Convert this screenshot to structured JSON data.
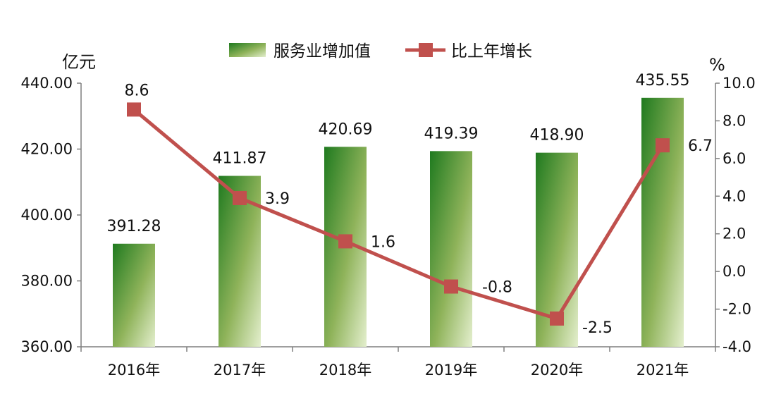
{
  "chart_data": {
    "type": "bar+line",
    "categories": [
      "2016年",
      "2017年",
      "2018年",
      "2019年",
      "2020年",
      "2021年"
    ],
    "series": [
      {
        "name": "服务业增加值",
        "type": "bar",
        "axis": "left",
        "values": [
          391.28,
          411.87,
          420.69,
          419.39,
          418.9,
          435.55
        ],
        "labels": [
          "391.28",
          "411.87",
          "420.69",
          "419.39",
          "418.90",
          "435.55"
        ]
      },
      {
        "name": "比上年增长",
        "type": "line",
        "axis": "right",
        "values": [
          8.6,
          3.9,
          1.6,
          -0.8,
          -2.5,
          6.7
        ],
        "labels": [
          "8.6",
          "3.9",
          "1.6",
          "-0.8",
          "-2.5",
          "6.7"
        ]
      }
    ],
    "y_left": {
      "unit": "亿元",
      "ylim": [
        360,
        440
      ],
      "ticks": [
        "360.00",
        "380.00",
        "400.00",
        "420.00",
        "440.00"
      ]
    },
    "y_right": {
      "unit": "%",
      "ylim": [
        -4,
        10
      ],
      "ticks": [
        "-4.0",
        "-2.0",
        "0.0",
        "2.0",
        "4.0",
        "6.0",
        "8.0",
        "10.0"
      ]
    },
    "legend_position": "top-center",
    "grid": false,
    "colors": {
      "bar_dark": "#1f7a1f",
      "bar_light": "#dce9c0",
      "line": "#c0504d",
      "axis": "#7f7f7f"
    }
  }
}
